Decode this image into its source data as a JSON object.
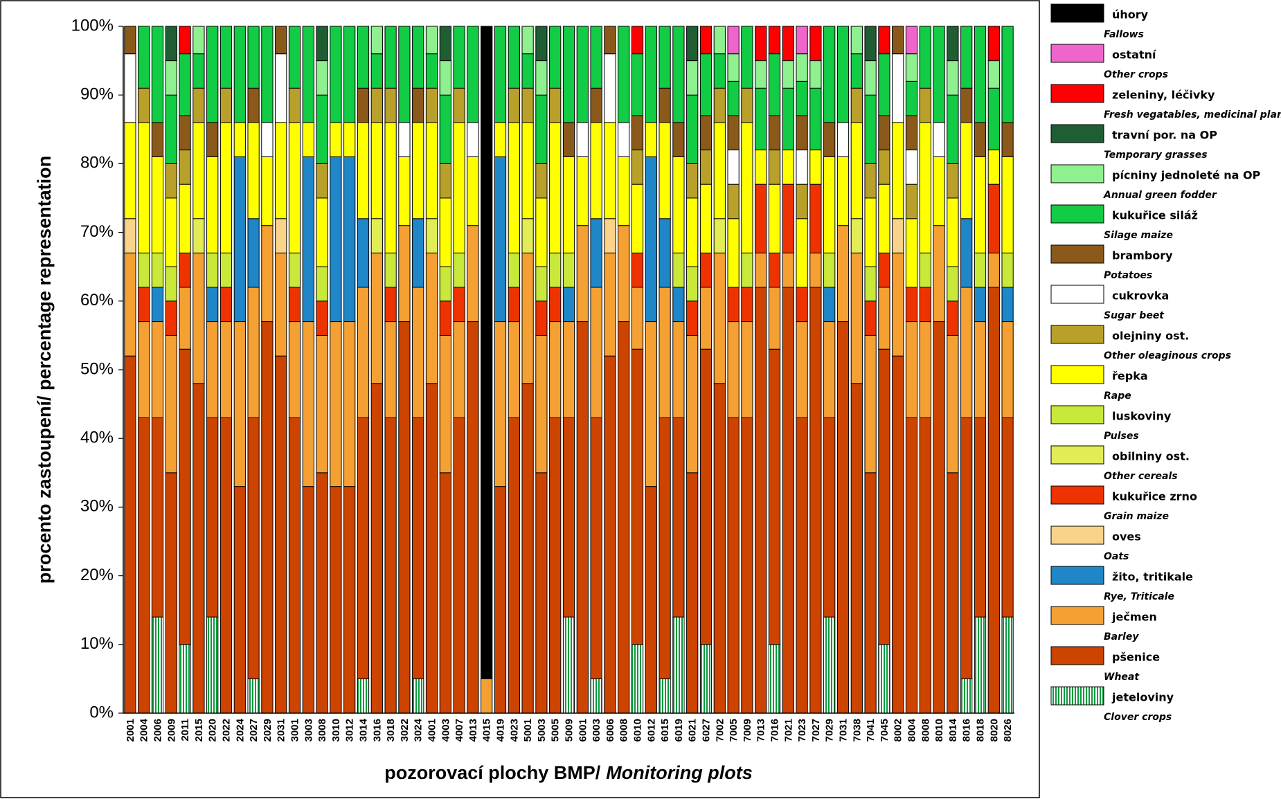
{
  "chart_data": {
    "type": "stacked_bar",
    "ylabel": "procento zastoupení/ percentage representation",
    "xlabel": "pozorovací plochy BMP/",
    "xlabel_en": "Monitoring plots",
    "legend": "right",
    "grid": false,
    "ylim": [
      0,
      100
    ],
    "yticks": [
      {
        "value": 0,
        "label": "0%"
      },
      {
        "value": 10,
        "label": "10%"
      },
      {
        "value": 20,
        "label": "20%"
      },
      {
        "value": 30,
        "label": "30%"
      },
      {
        "value": 40,
        "label": "40%"
      },
      {
        "value": 50,
        "label": "50%"
      },
      {
        "value": 60,
        "label": "60%"
      },
      {
        "value": 70,
        "label": "70%"
      },
      {
        "value": 80,
        "label": "80%"
      },
      {
        "value": 90,
        "label": "90%"
      },
      {
        "value": 100,
        "label": "100%"
      }
    ],
    "categories": [
      "2001",
      "2004",
      "2006",
      "2009",
      "2011",
      "2015",
      "2020",
      "2022",
      "2024",
      "2027",
      "2029",
      "2031",
      "3001",
      "3003",
      "3008",
      "3010",
      "3012",
      "3014",
      "3016",
      "3018",
      "3022",
      "3024",
      "4001",
      "4003",
      "4007",
      "4013",
      "4015",
      "4019",
      "4023",
      "5001",
      "5003",
      "5005",
      "5009",
      "6001",
      "6003",
      "6006",
      "6008",
      "6010",
      "6012",
      "6015",
      "6019",
      "6021",
      "6027",
      "7002",
      "7005",
      "7009",
      "7013",
      "7016",
      "7021",
      "7023",
      "7027",
      "7029",
      "7031",
      "7038",
      "7041",
      "7045",
      "8002",
      "8004",
      "8008",
      "8010",
      "8014",
      "8016",
      "8018",
      "8020",
      "8026"
    ],
    "series": [
      {
        "name": "jeteloviny",
        "subtitle": "Clover crops",
        "color": "#0b9a3c",
        "hatch": true,
        "values": [
          0,
          0,
          14,
          0,
          10,
          0,
          14,
          0,
          0,
          5,
          0,
          0,
          0,
          0,
          0,
          0,
          0,
          5,
          0,
          0,
          0,
          5,
          0,
          0,
          0,
          0,
          0,
          0,
          0,
          0,
          0,
          0,
          14,
          0,
          5,
          0,
          0,
          10,
          0,
          5,
          14,
          0,
          10,
          0,
          0,
          0,
          0,
          10,
          0,
          0,
          0,
          14,
          0,
          0,
          0,
          10,
          0,
          0,
          0,
          0,
          0,
          5,
          14,
          0,
          14
        ]
      },
      {
        "name": "pšenice",
        "subtitle": "Wheat",
        "color": "#cc4400",
        "values": [
          52,
          43,
          29,
          35,
          43,
          48,
          29,
          43,
          33,
          38,
          57,
          52,
          43,
          33,
          35,
          33,
          33,
          38,
          48,
          43,
          57,
          38,
          48,
          35,
          43,
          57,
          0,
          33,
          43,
          48,
          35,
          43,
          29,
          57,
          38,
          52,
          57,
          43,
          33,
          38,
          29,
          35,
          43,
          48,
          43,
          43,
          62,
          43,
          62,
          43,
          62,
          29,
          57,
          48,
          35,
          43,
          52,
          43,
          43,
          57,
          35,
          38,
          29,
          62,
          29
        ]
      },
      {
        "name": "ječmen",
        "subtitle": "Barley",
        "color": "#f5a033",
        "values": [
          15,
          14,
          14,
          20,
          9,
          19,
          14,
          14,
          24,
          19,
          14,
          15,
          14,
          24,
          20,
          24,
          24,
          19,
          19,
          14,
          14,
          19,
          19,
          20,
          14,
          14,
          5,
          24,
          14,
          19,
          20,
          14,
          14,
          14,
          19,
          15,
          14,
          9,
          24,
          19,
          14,
          20,
          9,
          19,
          14,
          14,
          5,
          9,
          5,
          14,
          5,
          14,
          14,
          19,
          20,
          9,
          15,
          14,
          14,
          14,
          20,
          19,
          14,
          5,
          14
        ]
      },
      {
        "name": "žito, tritikale",
        "subtitle": "Rye, Triticale",
        "color": "#1f86c8",
        "values": [
          0,
          0,
          5,
          0,
          0,
          0,
          5,
          0,
          24,
          10,
          0,
          0,
          0,
          24,
          0,
          24,
          24,
          10,
          0,
          0,
          0,
          10,
          0,
          0,
          0,
          0,
          0,
          24,
          0,
          0,
          0,
          0,
          5,
          0,
          10,
          0,
          0,
          0,
          24,
          10,
          5,
          0,
          0,
          0,
          0,
          0,
          0,
          0,
          0,
          0,
          0,
          5,
          0,
          0,
          0,
          0,
          0,
          0,
          0,
          0,
          0,
          10,
          5,
          0,
          5
        ]
      },
      {
        "name": "oves",
        "subtitle": "Oats",
        "color": "#f9d38a",
        "values": [
          5,
          0,
          0,
          0,
          0,
          0,
          0,
          0,
          0,
          0,
          0,
          5,
          0,
          0,
          0,
          0,
          0,
          0,
          0,
          0,
          0,
          0,
          0,
          0,
          0,
          0,
          0,
          0,
          0,
          0,
          0,
          0,
          0,
          0,
          0,
          5,
          0,
          0,
          0,
          0,
          0,
          0,
          0,
          0,
          0,
          0,
          0,
          0,
          0,
          0,
          0,
          0,
          0,
          0,
          0,
          0,
          5,
          0,
          0,
          0,
          0,
          0,
          0,
          0,
          0
        ]
      },
      {
        "name": "kukuřice zrno",
        "subtitle": "Grain maize",
        "color": "#ee3300",
        "values": [
          0,
          5,
          0,
          5,
          5,
          0,
          0,
          5,
          0,
          0,
          0,
          0,
          5,
          0,
          5,
          0,
          0,
          0,
          0,
          5,
          0,
          0,
          0,
          5,
          5,
          0,
          0,
          0,
          5,
          0,
          5,
          5,
          0,
          0,
          0,
          0,
          0,
          5,
          0,
          0,
          0,
          5,
          5,
          0,
          5,
          5,
          10,
          5,
          10,
          5,
          10,
          0,
          0,
          0,
          5,
          5,
          0,
          5,
          5,
          0,
          5,
          0,
          0,
          10,
          0
        ]
      },
      {
        "name": "obilniny ost.",
        "subtitle": "Other cereals",
        "color": "#e2ec55",
        "values": [
          0,
          0,
          0,
          0,
          0,
          5,
          0,
          0,
          0,
          0,
          0,
          0,
          0,
          0,
          0,
          0,
          0,
          0,
          5,
          0,
          0,
          0,
          5,
          0,
          0,
          0,
          0,
          0,
          0,
          5,
          0,
          0,
          0,
          0,
          0,
          0,
          0,
          0,
          0,
          0,
          0,
          0,
          0,
          5,
          0,
          0,
          0,
          0,
          0,
          0,
          0,
          0,
          0,
          5,
          0,
          0,
          0,
          0,
          0,
          0,
          0,
          0,
          0,
          0,
          0
        ]
      },
      {
        "name": "luskoviny",
        "subtitle": "Pulses",
        "color": "#c8e83a",
        "values": [
          0,
          5,
          5,
          5,
          0,
          0,
          5,
          5,
          0,
          0,
          0,
          0,
          5,
          0,
          5,
          0,
          0,
          0,
          0,
          5,
          0,
          0,
          0,
          5,
          5,
          0,
          0,
          0,
          5,
          0,
          5,
          5,
          5,
          0,
          0,
          0,
          0,
          0,
          0,
          0,
          5,
          5,
          0,
          0,
          0,
          5,
          0,
          0,
          0,
          0,
          0,
          5,
          0,
          0,
          5,
          0,
          0,
          0,
          5,
          0,
          5,
          0,
          5,
          0,
          5
        ]
      },
      {
        "name": "řepka",
        "subtitle": "Rape",
        "color": "#ffff00",
        "values": [
          14,
          19,
          14,
          10,
          10,
          14,
          14,
          19,
          5,
          14,
          10,
          14,
          19,
          5,
          10,
          5,
          5,
          14,
          14,
          19,
          10,
          14,
          14,
          10,
          19,
          10,
          0,
          5,
          19,
          14,
          10,
          19,
          14,
          10,
          14,
          14,
          10,
          10,
          5,
          14,
          14,
          10,
          10,
          14,
          10,
          19,
          5,
          10,
          5,
          10,
          5,
          14,
          10,
          14,
          10,
          10,
          14,
          10,
          19,
          10,
          10,
          14,
          14,
          5,
          14
        ]
      },
      {
        "name": "olejniny ost.",
        "subtitle": "Other oleaginous crops",
        "color": "#b8a02a",
        "values": [
          0,
          5,
          0,
          5,
          5,
          5,
          0,
          5,
          0,
          0,
          0,
          0,
          5,
          0,
          5,
          0,
          0,
          0,
          5,
          5,
          0,
          0,
          5,
          5,
          5,
          0,
          0,
          0,
          5,
          5,
          5,
          5,
          0,
          0,
          0,
          0,
          0,
          5,
          0,
          0,
          0,
          5,
          5,
          5,
          5,
          5,
          0,
          5,
          0,
          5,
          0,
          0,
          0,
          5,
          5,
          5,
          0,
          5,
          5,
          0,
          5,
          0,
          0,
          0,
          0
        ]
      },
      {
        "name": "cukrovka",
        "subtitle": "Sugar beet",
        "color": "#ffffff",
        "values": [
          10,
          0,
          0,
          0,
          0,
          0,
          0,
          0,
          0,
          0,
          5,
          10,
          0,
          0,
          0,
          0,
          0,
          0,
          0,
          0,
          5,
          0,
          0,
          0,
          0,
          5,
          0,
          0,
          0,
          0,
          0,
          0,
          0,
          5,
          0,
          10,
          5,
          0,
          0,
          0,
          0,
          0,
          0,
          0,
          5,
          0,
          0,
          0,
          0,
          5,
          0,
          0,
          5,
          0,
          0,
          0,
          10,
          5,
          0,
          5,
          0,
          0,
          0,
          0,
          0
        ]
      },
      {
        "name": "brambory",
        "subtitle": "Potatoes",
        "color": "#8b5a1a",
        "values": [
          4,
          0,
          5,
          0,
          5,
          0,
          5,
          0,
          0,
          5,
          0,
          4,
          0,
          0,
          0,
          0,
          0,
          5,
          0,
          0,
          0,
          5,
          0,
          0,
          0,
          0,
          0,
          0,
          0,
          0,
          0,
          0,
          5,
          0,
          5,
          4,
          0,
          5,
          0,
          5,
          5,
          0,
          5,
          0,
          5,
          0,
          0,
          5,
          0,
          5,
          0,
          5,
          0,
          0,
          0,
          5,
          4,
          5,
          0,
          0,
          0,
          5,
          5,
          0,
          5
        ]
      },
      {
        "name": "kukuřice siláž",
        "subtitle": "Silage maize",
        "color": "#11cc44",
        "values": [
          0,
          9,
          14,
          10,
          9,
          5,
          14,
          9,
          14,
          9,
          14,
          0,
          9,
          14,
          10,
          14,
          14,
          9,
          5,
          9,
          14,
          9,
          5,
          10,
          9,
          14,
          0,
          14,
          9,
          5,
          10,
          9,
          14,
          14,
          9,
          0,
          14,
          9,
          14,
          9,
          14,
          10,
          9,
          5,
          5,
          9,
          9,
          9,
          9,
          5,
          9,
          14,
          14,
          5,
          10,
          9,
          0,
          5,
          9,
          14,
          10,
          9,
          14,
          9,
          14
        ]
      },
      {
        "name": "pícniny jednoleté na OP",
        "subtitle": "Annual green fodder",
        "color": "#8ef08e",
        "values": [
          0,
          0,
          0,
          5,
          0,
          4,
          0,
          0,
          0,
          0,
          0,
          0,
          0,
          0,
          5,
          0,
          0,
          0,
          4,
          0,
          0,
          0,
          4,
          5,
          0,
          0,
          0,
          0,
          0,
          4,
          5,
          0,
          0,
          0,
          0,
          0,
          0,
          0,
          0,
          0,
          0,
          5,
          0,
          4,
          4,
          0,
          4,
          0,
          4,
          4,
          4,
          0,
          0,
          4,
          5,
          0,
          0,
          4,
          0,
          0,
          5,
          0,
          0,
          4,
          0
        ]
      },
      {
        "name": "travní por. na OP",
        "subtitle": "Temporary grasses",
        "color": "#1f5e32",
        "values": [
          0,
          0,
          0,
          5,
          0,
          0,
          0,
          0,
          0,
          0,
          0,
          0,
          0,
          0,
          5,
          0,
          0,
          0,
          0,
          0,
          0,
          0,
          0,
          5,
          0,
          0,
          0,
          0,
          0,
          0,
          5,
          0,
          0,
          0,
          0,
          0,
          0,
          0,
          0,
          0,
          0,
          5,
          0,
          0,
          0,
          0,
          0,
          0,
          0,
          0,
          0,
          0,
          0,
          0,
          5,
          0,
          0,
          0,
          0,
          0,
          5,
          0,
          0,
          0,
          0
        ]
      },
      {
        "name": "zeleniny, léčivky",
        "subtitle": "Fresh vegatables, medicinal plants",
        "color": "#ff0000",
        "values": [
          0,
          0,
          0,
          0,
          4,
          0,
          0,
          0,
          0,
          0,
          0,
          0,
          0,
          0,
          0,
          0,
          0,
          0,
          0,
          0,
          0,
          0,
          0,
          0,
          0,
          0,
          0,
          0,
          0,
          0,
          0,
          0,
          0,
          0,
          0,
          0,
          0,
          4,
          0,
          0,
          0,
          0,
          4,
          0,
          0,
          0,
          5,
          4,
          5,
          0,
          5,
          0,
          0,
          0,
          0,
          4,
          0,
          0,
          0,
          0,
          0,
          0,
          0,
          5,
          0
        ]
      },
      {
        "name": "ostatní",
        "subtitle": "Other crops",
        "color": "#ee66cc",
        "values": [
          0,
          0,
          0,
          0,
          0,
          0,
          0,
          0,
          0,
          0,
          0,
          0,
          0,
          0,
          0,
          0,
          0,
          0,
          0,
          0,
          0,
          0,
          0,
          0,
          0,
          0,
          0,
          0,
          0,
          0,
          0,
          0,
          0,
          0,
          0,
          0,
          0,
          0,
          0,
          0,
          0,
          0,
          0,
          0,
          4,
          0,
          0,
          0,
          0,
          4,
          0,
          0,
          0,
          0,
          0,
          0,
          0,
          4,
          0,
          0,
          0,
          0,
          0,
          0,
          0
        ]
      },
      {
        "name": "úhory",
        "subtitle": "Fallows",
        "color": "#000000",
        "values": [
          0,
          0,
          0,
          0,
          0,
          0,
          0,
          0,
          0,
          0,
          0,
          0,
          0,
          0,
          0,
          0,
          0,
          0,
          0,
          0,
          0,
          0,
          0,
          0,
          0,
          0,
          95,
          0,
          0,
          0,
          0,
          0,
          0,
          0,
          0,
          0,
          0,
          0,
          0,
          0,
          0,
          0,
          0,
          0,
          0,
          0,
          0,
          0,
          0,
          0,
          0,
          0,
          0,
          0,
          0,
          0,
          0,
          0,
          0,
          0,
          0,
          0,
          0,
          0,
          0
        ]
      }
    ]
  }
}
